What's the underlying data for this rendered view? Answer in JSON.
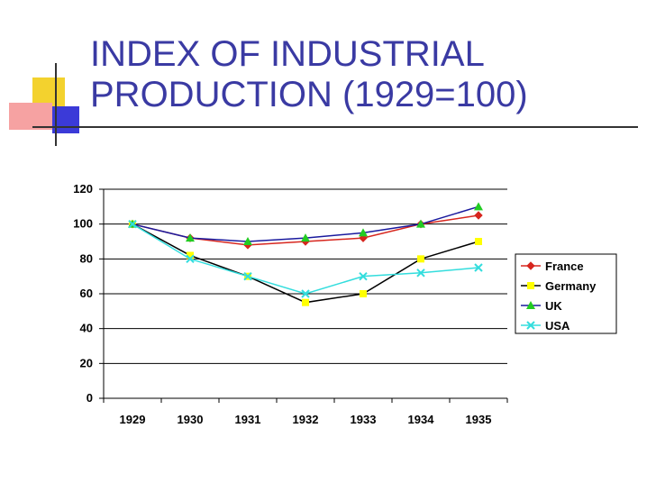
{
  "slide": {
    "title_line1": "INDEX OF INDUSTRIAL",
    "title_line2": "PRODUCTION (1929=100)",
    "title_color": "#3a3aa3"
  },
  "chart_data": {
    "type": "line",
    "categories": [
      "1929",
      "1930",
      "1931",
      "1932",
      "1933",
      "1934",
      "1935"
    ],
    "ylim": [
      0,
      120
    ],
    "yticks": [
      0,
      20,
      40,
      60,
      80,
      100,
      120
    ],
    "grid": true,
    "legend": "right",
    "series": [
      {
        "name": "France",
        "values": [
          100,
          92,
          88,
          90,
          92,
          100,
          105
        ],
        "color": "#d7261e",
        "marker": "diamond",
        "line_color": "#d7261e"
      },
      {
        "name": "Germany",
        "values": [
          100,
          82,
          70,
          55,
          60,
          80,
          90
        ],
        "color": "#ffff00",
        "marker": "square",
        "line_color": "#000000"
      },
      {
        "name": "UK",
        "values": [
          100,
          92,
          90,
          92,
          95,
          100,
          110
        ],
        "color": "#22cc22",
        "marker": "triangle",
        "line_color": "#1a1a9e"
      },
      {
        "name": "USA",
        "values": [
          100,
          80,
          70,
          60,
          70,
          72,
          75
        ],
        "color": "#33dddd",
        "marker": "x",
        "line_color": "#33dddd"
      }
    ]
  }
}
